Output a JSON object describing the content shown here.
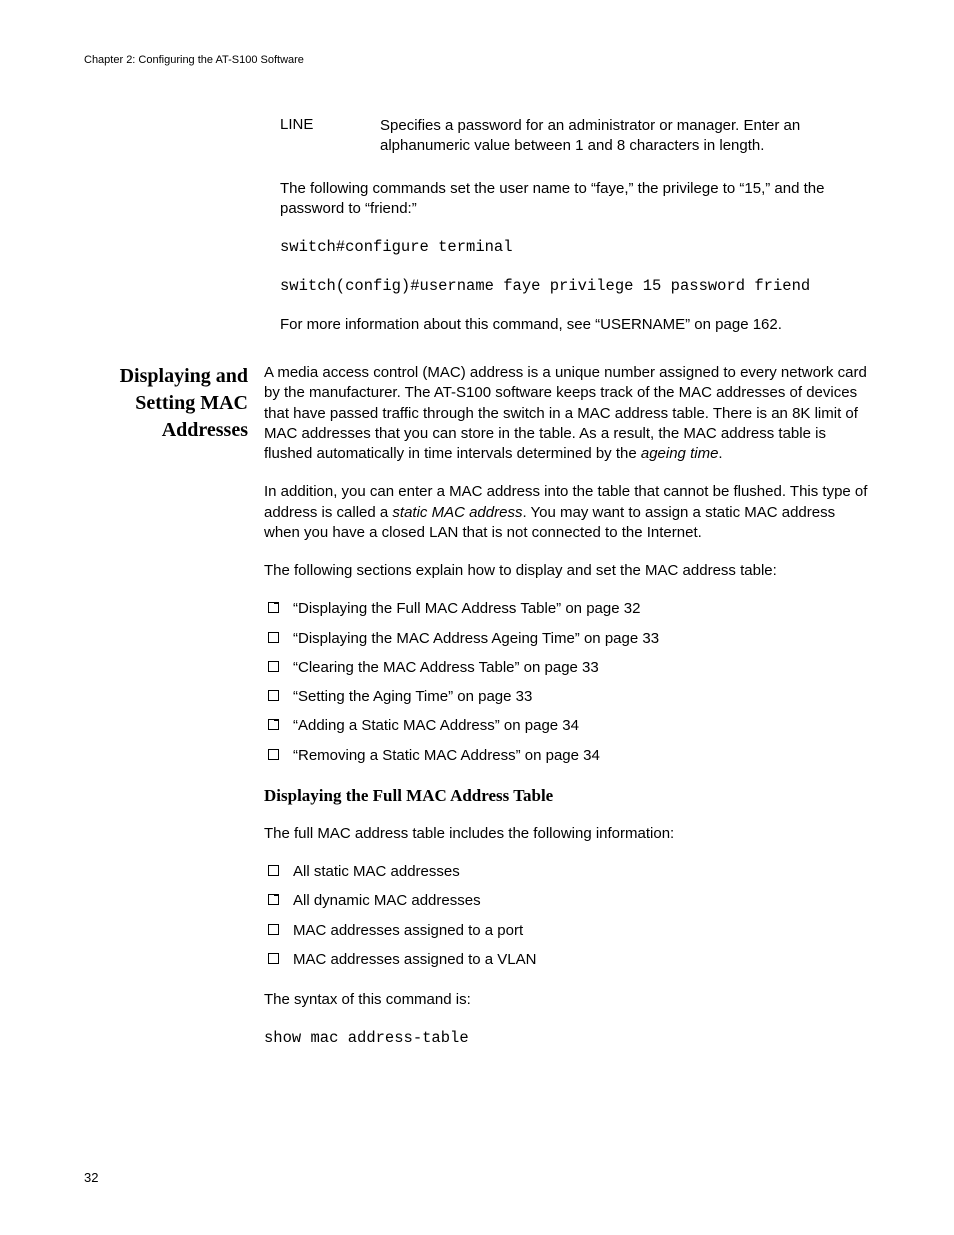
{
  "running_head": "Chapter 2: Configuring the AT-S100 Software",
  "page_number": "32",
  "def_term": "LINE",
  "def_desc": "Specifies a password for an administrator or manager. Enter an alphanumeric value between 1 and 8 characters in length.",
  "para_intro": "The following commands set the user name to “faye,” the privilege to “15,” and the password to “friend:”",
  "code_line1": "switch#configure terminal",
  "code_line2": "switch(config)#username faye privilege 15 password friend",
  "para_moreinfo": "For more information about this command, see “USERNAME” on page 162.",
  "side_heading": "Displaying and Setting MAC Addresses",
  "mac_para1_a": "A media access control (MAC) address is a unique number assigned to every network card by the manufacturer. The AT-S100 software keeps track of the MAC addresses of devices that have passed traffic through the switch in a MAC address table. There is an 8K limit of MAC addresses that you can store in the table. As a result, the MAC address table is flushed automatically in time intervals determined by the ",
  "mac_para1_em": "ageing time",
  "mac_para1_b": ".",
  "mac_para2_a": "In addition, you can enter a MAC address into the table that cannot be flushed. This type of address is called a ",
  "mac_para2_em": "static MAC address",
  "mac_para2_b": ". You may want to assign a static MAC address when you have a closed LAN that is not connected to the Internet.",
  "mac_para3": "The following sections explain how to display and set the MAC address table:",
  "toc": [
    "“Displaying the Full MAC Address Table” on page 32",
    "“Displaying the MAC Address Ageing Time” on page 33",
    "“Clearing the MAC Address Table” on page 33",
    "“Setting the Aging Time” on page 33",
    "“Adding a Static MAC Address” on page 34",
    "“Removing a Static MAC Address” on page 34"
  ],
  "subheading": "Displaying the Full MAC Address Table",
  "sub_para1": "The full MAC address table includes the following information:",
  "sub_list": [
    "All static MAC addresses",
    "All dynamic MAC addresses",
    "MAC addresses assigned to a port",
    "MAC addresses assigned to a VLAN"
  ],
  "syntax_para": "The syntax of this command is:",
  "syntax_code": "show mac address-table"
}
